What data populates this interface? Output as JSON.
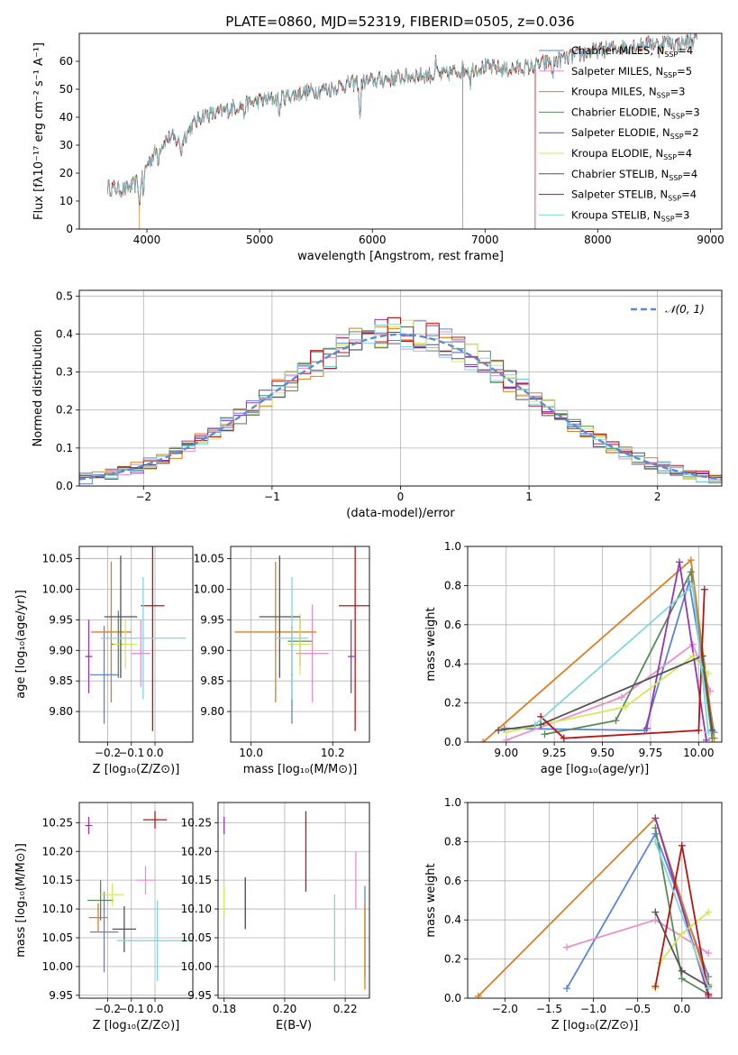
{
  "figure_title": "PLATE=0860, MJD=52319, FIBERID=0505, z=0.036",
  "model_colors": [
    "#5b84d4",
    "#e98fc9",
    "#d97f22",
    "#5a8a5a",
    "#9336b5",
    "#d4e85a",
    "#555555",
    "#b81414",
    "#80d6e0"
  ],
  "chart_data": [
    {
      "id": "spectrum",
      "type": "line",
      "title": "PLATE=0860, MJD=52319, FIBERID=0505, z=0.036",
      "xlabel": "wavelength [Angstrom, rest frame]",
      "ylabel": "Flux [fλ10⁻¹⁷ erg cm⁻² s⁻¹ A⁻¹]",
      "xlim": [
        3400,
        9100
      ],
      "ylim": [
        0,
        70
      ],
      "xticks": [
        4000,
        5000,
        6000,
        7000,
        8000,
        9000
      ],
      "yticks": [
        0,
        10,
        20,
        30,
        40,
        50,
        60
      ],
      "legend_position": "upper-right",
      "series": [
        {
          "name": "Chabrier MILES, N_SSP=4",
          "label_main": "Chabrier MILES, N",
          "label_sub": "SSP",
          "label_tail": "=4"
        },
        {
          "name": "Salpeter MILES, N_SSP=5",
          "label_main": "Salpeter MILES, N",
          "label_sub": "SSP",
          "label_tail": "=5"
        },
        {
          "name": "Kroupa MILES, N_SSP=3",
          "label_main": "Kroupa MILES, N",
          "label_sub": "SSP",
          "label_tail": "=3"
        },
        {
          "name": "Chabrier ELODIE, N_SSP=3",
          "label_main": "Chabrier ELODIE, N",
          "label_sub": "SSP",
          "label_tail": "=3"
        },
        {
          "name": "Salpeter ELODIE, N_SSP=2",
          "label_main": "Salpeter ELODIE, N",
          "label_sub": "SSP",
          "label_tail": "=2"
        },
        {
          "name": "Kroupa ELODIE, N_SSP=4",
          "label_main": "Kroupa ELODIE, N",
          "label_sub": "SSP",
          "label_tail": "=4"
        },
        {
          "name": "Chabrier STELIB, N_SSP=4",
          "label_main": "Chabrier STELIB, N",
          "label_sub": "SSP",
          "label_tail": "=4"
        },
        {
          "name": "Salpeter STELIB, N_SSP=4",
          "label_main": "Salpeter STELIB, N",
          "label_sub": "SSP",
          "label_tail": "=4"
        },
        {
          "name": "Kroupa STELIB, N_SSP=3",
          "label_main": "Kroupa STELIB, N",
          "label_sub": "SSP",
          "label_tail": "=3"
        }
      ],
      "continuum_knots": [
        [
          3650,
          15
        ],
        [
          3800,
          14
        ],
        [
          3900,
          16
        ],
        [
          4000,
          23
        ],
        [
          4100,
          29
        ],
        [
          4200,
          33
        ],
        [
          4300,
          31
        ],
        [
          4400,
          37
        ],
        [
          4500,
          41
        ],
        [
          4600,
          41
        ],
        [
          4800,
          44
        ],
        [
          5000,
          46
        ],
        [
          5200,
          47
        ],
        [
          5400,
          49
        ],
        [
          5600,
          50
        ],
        [
          5800,
          52
        ],
        [
          6000,
          53
        ],
        [
          6200,
          54
        ],
        [
          6400,
          55
        ],
        [
          6600,
          55
        ],
        [
          6800,
          57
        ],
        [
          7000,
          58
        ],
        [
          7200,
          57
        ],
        [
          7400,
          58
        ],
        [
          7600,
          60
        ],
        [
          7800,
          62
        ],
        [
          8000,
          64
        ],
        [
          8200,
          65
        ],
        [
          8400,
          66
        ],
        [
          8600,
          67
        ],
        [
          8700,
          66
        ],
        [
          8880,
          68
        ]
      ],
      "absorption_lines": [
        [
          3934,
          11
        ],
        [
          3969,
          9
        ],
        [
          4102,
          4
        ],
        [
          4305,
          4
        ],
        [
          4861,
          4
        ],
        [
          5176,
          6
        ],
        [
          5890,
          14
        ],
        [
          6563,
          -4
        ],
        [
          6870,
          5
        ],
        [
          7600,
          6
        ],
        [
          8542,
          3
        ]
      ],
      "drops": [
        [
          3930,
          2
        ],
        [
          6800,
          3
        ],
        [
          7440,
          7
        ]
      ]
    },
    {
      "id": "residuals",
      "type": "histogram",
      "xlabel": "(data-model)/error",
      "ylabel": "Normed distribution",
      "xlim": [
        -2.5,
        2.5
      ],
      "ylim": [
        0,
        0.515
      ],
      "xticks": [
        -2,
        -1,
        0,
        1,
        2
      ],
      "yticks": [
        0.0,
        0.1,
        0.2,
        0.3,
        0.4,
        0.5
      ],
      "legend_position": "upper-right",
      "reference_label": "𝒩(0, 1)",
      "bin_width": 0.1
    },
    {
      "id": "age-vs-Z",
      "type": "scatter",
      "xlabel": "Z [log₁₀(Z/Z⊙)]",
      "ylabel": "age  [log₁₀(age/yr)]",
      "xlim": [
        -0.32,
        0.16
      ],
      "ylim": [
        9.75,
        10.07
      ],
      "xticks": [
        -0.2,
        -0.1,
        0.0
      ],
      "yticks": [
        9.8,
        9.85,
        9.9,
        9.95,
        10.0,
        10.05
      ],
      "points": [
        {
          "x": -0.215,
          "xerr": 0.06,
          "y": 9.86,
          "yerr": 0.08
        },
        {
          "x": -0.06,
          "xerr": 0.04,
          "y": 9.895,
          "yerr": 0.055
        },
        {
          "x": -0.185,
          "xerr": 0.085,
          "y": 9.93,
          "yerr": 0.115
        },
        {
          "x": -0.155,
          "xerr": 0.03,
          "y": 9.91,
          "yerr": 0.055
        },
        {
          "x": -0.28,
          "xerr": 0.015,
          "y": 9.89,
          "yerr": 0.06
        },
        {
          "x": -0.125,
          "xerr": 0.05,
          "y": 9.91,
          "yerr": 0.04
        },
        {
          "x": -0.145,
          "xerr": 0.07,
          "y": 9.955,
          "yerr": 0.1
        },
        {
          "x": -0.01,
          "xerr": 0.05,
          "y": 9.973,
          "yerr": 0.205
        },
        {
          "x": -0.05,
          "xerr": 0.18,
          "y": 9.92,
          "yerr": 0.1
        }
      ]
    },
    {
      "id": "age-vs-mass",
      "type": "scatter",
      "xlabel": "mass [log₁₀(M/M⊙)]",
      "ylabel": "",
      "xlim": [
        9.95,
        10.29
      ],
      "ylim": [
        9.75,
        10.07
      ],
      "xticks": [
        10.0,
        10.2
      ],
      "yticks": [
        9.8,
        9.85,
        9.9,
        9.95,
        10.0,
        10.05
      ],
      "points": [
        {
          "x": 10.1,
          "xerr": 0.002,
          "y": 9.86,
          "yerr": 0.08
        },
        {
          "x": 10.15,
          "xerr": 0.04,
          "y": 9.895,
          "yerr": 0.08
        },
        {
          "x": 10.06,
          "xerr": 0.1,
          "y": 9.93,
          "yerr": 0.115
        },
        {
          "x": 10.12,
          "xerr": 0.03,
          "y": 9.915,
          "yerr": 0.04
        },
        {
          "x": 10.245,
          "xerr": 0.008,
          "y": 9.89,
          "yerr": 0.06
        },
        {
          "x": 10.12,
          "xerr": 0.03,
          "y": 9.91,
          "yerr": 0.05
        },
        {
          "x": 10.07,
          "xerr": 0.05,
          "y": 9.955,
          "yerr": 0.1
        },
        {
          "x": 10.255,
          "xerr": 0.04,
          "y": 9.973,
          "yerr": 0.205
        },
        {
          "x": 10.1,
          "xerr": 0.04,
          "y": 9.92,
          "yerr": 0.1
        }
      ]
    },
    {
      "id": "weight-vs-age",
      "type": "line",
      "xlabel": "age  [log₁₀(age/yr)]",
      "ylabel": "mass weight",
      "xlim": [
        8.8,
        10.12
      ],
      "ylim": [
        0,
        1
      ],
      "xticks": [
        9.0,
        9.25,
        9.5,
        9.75,
        10.0
      ],
      "yticks": [
        0.0,
        0.2,
        0.4,
        0.6,
        0.8,
        1.0
      ],
      "series": [
        {
          "x": [
            8.99,
            9.72,
            9.95,
            10.08
          ],
          "y": [
            0.07,
            0.06,
            0.82,
            0.05
          ]
        },
        {
          "x": [
            9.0,
            9.6,
            9.97,
            10.06
          ],
          "y": [
            0.01,
            0.23,
            0.5,
            0.26
          ]
        },
        {
          "x": [
            8.88,
            9.96,
            10.08
          ],
          "y": [
            0.0,
            0.93,
            0.02
          ]
        },
        {
          "x": [
            9.2,
            9.57,
            9.96,
            10.07
          ],
          "y": [
            0.04,
            0.11,
            0.87,
            0.02
          ]
        },
        {
          "x": [
            9.73,
            9.9,
            10.04
          ],
          "y": [
            0.07,
            0.92,
            0.01
          ]
        },
        {
          "x": [
            9.0,
            9.62,
            9.97,
            10.05
          ],
          "y": [
            0.05,
            0.18,
            0.44,
            0.35
          ]
        },
        {
          "x": [
            8.96,
            9.18,
            10.02,
            10.07
          ],
          "y": [
            0.06,
            0.09,
            0.44,
            0.06
          ]
        },
        {
          "x": [
            9.18,
            9.3,
            10.0,
            10.03
          ],
          "y": [
            0.13,
            0.02,
            0.06,
            0.78
          ]
        },
        {
          "x": [
            9.15,
            9.97,
            10.05
          ],
          "y": [
            0.09,
            0.8,
            0.05
          ]
        }
      ]
    },
    {
      "id": "mass-vs-Z",
      "type": "scatter",
      "xlabel": "Z [log₁₀(Z/Z⊙)]",
      "ylabel": "mass [log₁₀(M/M⊙)]",
      "xlim": [
        -0.32,
        0.16
      ],
      "ylim": [
        9.945,
        10.285
      ],
      "xticks": [
        -0.2,
        -0.1,
        0.0
      ],
      "yticks": [
        9.95,
        10.0,
        10.05,
        10.1,
        10.15,
        10.2,
        10.25
      ],
      "points": [
        {
          "x": -0.215,
          "xerr": 0.06,
          "y": 10.06,
          "yerr": 0.07
        },
        {
          "x": -0.04,
          "xerr": 0.04,
          "y": 10.15,
          "yerr": 0.025
        },
        {
          "x": -0.24,
          "xerr": 0.04,
          "y": 10.085,
          "yerr": 0.025
        },
        {
          "x": -0.23,
          "xerr": 0.055,
          "y": 10.115,
          "yerr": 0.035
        },
        {
          "x": -0.28,
          "xerr": 0.015,
          "y": 10.245,
          "yerr": 0.015
        },
        {
          "x": -0.18,
          "xerr": 0.05,
          "y": 10.125,
          "yerr": 0.02
        },
        {
          "x": -0.13,
          "xerr": 0.05,
          "y": 10.065,
          "yerr": 0.04
        },
        {
          "x": 0.0,
          "xerr": 0.05,
          "y": 10.255,
          "yerr": 0.015
        },
        {
          "x": 0.01,
          "xerr": 0.17,
          "y": 10.045,
          "yerr": 0.07
        }
      ]
    },
    {
      "id": "mass-vs-EBV",
      "type": "scatter",
      "xlabel": "E(B-V)",
      "ylabel": "",
      "xlim": [
        0.178,
        0.228
      ],
      "ylim": [
        9.945,
        10.285
      ],
      "xticks": [
        0.18,
        0.2,
        0.22
      ],
      "yticks": [
        9.95,
        10.0,
        10.05,
        10.1,
        10.15,
        10.2,
        10.25
      ],
      "points": [
        {
          "x": 0.2265,
          "y": 10.06,
          "yerr": 0.08
        },
        {
          "x": 0.2235,
          "y": 10.15,
          "yerr": 0.05
        },
        {
          "x": 0.2265,
          "y": 10.035,
          "yerr": 0.075
        },
        {
          "x": 0.187,
          "y": 10.11,
          "yerr": 0.045
        },
        {
          "x": 0.18,
          "y": 10.245,
          "yerr": 0.015
        },
        {
          "x": 0.18,
          "y": 10.115,
          "yerr": 0.025
        },
        {
          "x": 0.187,
          "y": 10.11,
          "yerr": 0.045
        },
        {
          "x": 0.207,
          "y": 10.2,
          "yerr": 0.07
        },
        {
          "x": 0.2165,
          "y": 10.05,
          "yerr": 0.075
        }
      ]
    },
    {
      "id": "weight-vs-Z",
      "type": "line",
      "xlabel": "Z [log₁₀(Z/Z⊙)]",
      "ylabel": "mass weight",
      "xlim": [
        -2.42,
        0.45
      ],
      "ylim": [
        0,
        1
      ],
      "xticks": [
        -2.0,
        -1.5,
        -1.0,
        -0.5,
        0.0
      ],
      "yticks": [
        0.0,
        0.2,
        0.4,
        0.6,
        0.8,
        1.0
      ],
      "series": [
        {
          "x": [
            -1.3,
            -0.3,
            0.3
          ],
          "y": [
            0.05,
            0.84,
            0.11
          ]
        },
        {
          "x": [
            -1.3,
            -0.3,
            0.3
          ],
          "y": [
            0.26,
            0.4,
            0.23
          ]
        },
        {
          "x": [
            -2.3,
            -0.3,
            0.3
          ],
          "y": [
            0.01,
            0.92,
            0.07
          ]
        },
        {
          "x": [
            -0.3,
            0.0,
            0.3
          ],
          "y": [
            0.87,
            0.1,
            0.02
          ]
        },
        {
          "x": [
            -0.3,
            0.3
          ],
          "y": [
            0.92,
            0.01
          ]
        },
        {
          "x": [
            -0.3,
            -0.25,
            0.0,
            0.3
          ],
          "y": [
            0.05,
            0.18,
            0.33,
            0.44
          ]
        },
        {
          "x": [
            -0.3,
            0.0,
            0.3
          ],
          "y": [
            0.44,
            0.14,
            0.06
          ]
        },
        {
          "x": [
            -0.3,
            0.0,
            0.3
          ],
          "y": [
            0.06,
            0.78,
            0.02
          ]
        },
        {
          "x": [
            -0.3,
            0.3
          ],
          "y": [
            0.8,
            0.05
          ]
        }
      ]
    }
  ]
}
